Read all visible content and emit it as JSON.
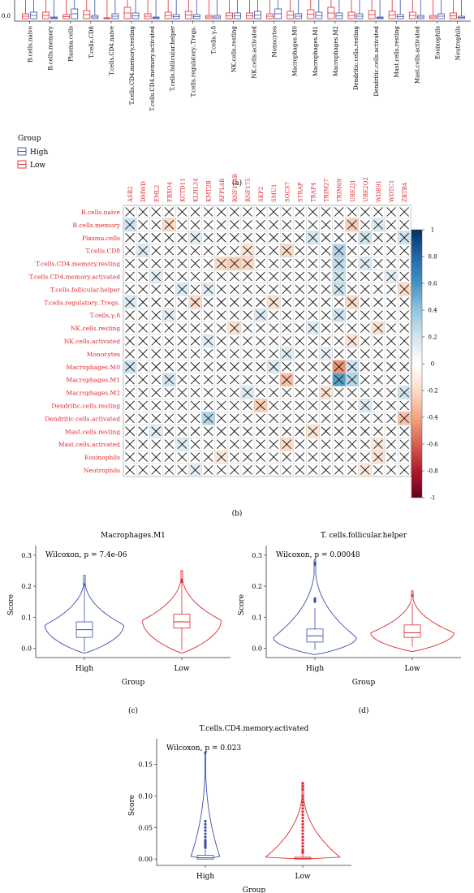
{
  "chart_data": [
    {
      "id": "a",
      "type": "box",
      "panel_label": "(a)",
      "ytick": "0.0",
      "categories": [
        "B.cells.naive",
        "B.cells.memory",
        "Plasma.cells",
        "T.cells.CD8",
        "T.cells.CD4.naive",
        "T.cells.CD4.memory.resting",
        "T.cells.CD4.memory.activated",
        "T.cells.follicular.helper",
        "T.cells.regulatory..Tregs.",
        "T.cells.γ.δ",
        "NK.cells.resting",
        "NK.cells.activated",
        "Monocytes",
        "Macrophages.M0",
        "Macrophages.M1",
        "Macrophages.M2",
        "Dendritic.cells.resting",
        "Dendritic.cells.activated",
        "Mast.cells.resting",
        "Mast.cells.activated",
        "Eosinophils",
        "Neutrophils"
      ],
      "legend_title": "Group",
      "groups": [
        {
          "name": "High",
          "color": "#3b4fa8"
        },
        {
          "name": "Low",
          "color": "#e0282e"
        }
      ]
    },
    {
      "id": "b",
      "type": "heatmap",
      "panel_label": "(b)",
      "columns": [
        "ASB2",
        "DMWD",
        "EML2",
        "FBXO4",
        "KCTD11",
        "KLHL34",
        "KMT2B",
        "RFPL4B",
        "RNF144B",
        "RNF175",
        "SKP2",
        "SMU1",
        "SOCS7",
        "STRAP",
        "TRAF4",
        "TRIM27",
        "TRIM69",
        "UBE2J1",
        "UBE2Q2",
        "WDR91",
        "WDTC1",
        "ZBTB4"
      ],
      "rows": [
        "B.cells.naive",
        "B.cells.memory",
        "Plasma.cells",
        "T.cells.CD8",
        "T.cells.CD4.memory.resting",
        "T.cells.CD4.memory.activated",
        "T.cells.follicular.helper",
        "T.cells.regulatory..Tregs.",
        "T.cells.γ.δ",
        "NK.cells.resting",
        "NK.cells.activated",
        "Monocytes",
        "Macrophages.M0",
        "Macrophages.M1",
        "Macrophages.M2",
        "Dendritic.cells.resting",
        "Dendritic.cells.activated",
        "Mast.cells.resting",
        "Mast.cells.activated",
        "Eosinophils",
        "Neutrophils"
      ],
      "colorbar_ticks": [
        "1",
        "0.8",
        "0.6",
        "0.4",
        "0.2",
        "0",
        "-0.2",
        "-0.4",
        "-0.6",
        "-0.8",
        "-1"
      ],
      "colorbar_range": [
        -1,
        1
      ],
      "highlight_cells": [
        {
          "row": 1,
          "col": 0,
          "v": 0.2
        },
        {
          "row": 1,
          "col": 3,
          "v": -0.2
        },
        {
          "row": 1,
          "col": 17,
          "v": -0.25
        },
        {
          "row": 1,
          "col": 19,
          "v": 0.15
        },
        {
          "row": 2,
          "col": 5,
          "v": 0.12
        },
        {
          "row": 2,
          "col": 14,
          "v": 0.18
        },
        {
          "row": 2,
          "col": 18,
          "v": 0.2
        },
        {
          "row": 2,
          "col": 21,
          "v": 0.2
        },
        {
          "row": 3,
          "col": 1,
          "v": 0.15
        },
        {
          "row": 3,
          "col": 9,
          "v": -0.15
        },
        {
          "row": 3,
          "col": 12,
          "v": -0.2
        },
        {
          "row": 3,
          "col": 16,
          "v": 0.3
        },
        {
          "row": 4,
          "col": 7,
          "v": -0.2
        },
        {
          "row": 4,
          "col": 8,
          "v": -0.25
        },
        {
          "row": 4,
          "col": 9,
          "v": -0.2
        },
        {
          "row": 4,
          "col": 16,
          "v": 0.25
        },
        {
          "row": 4,
          "col": 18,
          "v": 0.15
        },
        {
          "row": 5,
          "col": 2,
          "v": 0.12
        },
        {
          "row": 5,
          "col": 16,
          "v": 0.2
        },
        {
          "row": 5,
          "col": 20,
          "v": 0.12
        },
        {
          "row": 6,
          "col": 4,
          "v": 0.15
        },
        {
          "row": 6,
          "col": 6,
          "v": 0.12
        },
        {
          "row": 6,
          "col": 16,
          "v": 0.22
        },
        {
          "row": 6,
          "col": 21,
          "v": -0.2
        },
        {
          "row": 7,
          "col": 0,
          "v": 0.15
        },
        {
          "row": 7,
          "col": 5,
          "v": -0.2
        },
        {
          "row": 7,
          "col": 11,
          "v": -0.15
        },
        {
          "row": 7,
          "col": 17,
          "v": -0.2
        },
        {
          "row": 8,
          "col": 3,
          "v": 0.12
        },
        {
          "row": 8,
          "col": 10,
          "v": 0.15
        },
        {
          "row": 8,
          "col": 16,
          "v": 0.2
        },
        {
          "row": 9,
          "col": 8,
          "v": -0.15
        },
        {
          "row": 9,
          "col": 14,
          "v": 0.12
        },
        {
          "row": 9,
          "col": 19,
          "v": -0.15
        },
        {
          "row": 10,
          "col": 6,
          "v": 0.12
        },
        {
          "row": 10,
          "col": 17,
          "v": -0.15
        },
        {
          "row": 11,
          "col": 12,
          "v": 0.15
        },
        {
          "row": 11,
          "col": 15,
          "v": 0.1
        },
        {
          "row": 12,
          "col": 0,
          "v": 0.2
        },
        {
          "row": 12,
          "col": 11,
          "v": 0.15
        },
        {
          "row": 12,
          "col": 16,
          "v": -0.45
        },
        {
          "row": 12,
          "col": 17,
          "v": 0.2
        },
        {
          "row": 13,
          "col": 3,
          "v": 0.2
        },
        {
          "row": 13,
          "col": 12,
          "v": -0.3
        },
        {
          "row": 13,
          "col": 16,
          "v": 0.55
        },
        {
          "row": 13,
          "col": 17,
          "v": 0.3
        },
        {
          "row": 14,
          "col": 9,
          "v": 0.15
        },
        {
          "row": 14,
          "col": 15,
          "v": -0.15
        },
        {
          "row": 14,
          "col": 21,
          "v": 0.2
        },
        {
          "row": 15,
          "col": 10,
          "v": -0.25
        },
        {
          "row": 15,
          "col": 18,
          "v": 0.15
        },
        {
          "row": 16,
          "col": 6,
          "v": 0.3
        },
        {
          "row": 16,
          "col": 21,
          "v": -0.3
        },
        {
          "row": 17,
          "col": 2,
          "v": 0.12
        },
        {
          "row": 17,
          "col": 14,
          "v": -0.15
        },
        {
          "row": 18,
          "col": 4,
          "v": 0.15
        },
        {
          "row": 18,
          "col": 12,
          "v": -0.2
        },
        {
          "row": 18,
          "col": 19,
          "v": -0.12
        },
        {
          "row": 19,
          "col": 7,
          "v": -0.12
        },
        {
          "row": 19,
          "col": 19,
          "v": -0.15
        },
        {
          "row": 20,
          "col": 5,
          "v": 0.12
        },
        {
          "row": 20,
          "col": 18,
          "v": -0.12
        }
      ]
    },
    {
      "id": "c",
      "type": "violin",
      "panel_label": "(c)",
      "title": "Macrophages.M1",
      "annotation": "Wilcoxon, p = 7.4e-06",
      "xlabel": "Group",
      "ylabel": "Score",
      "ylim": [
        -0.03,
        0.31
      ],
      "yticks": [
        0.0,
        0.1,
        0.2,
        0.3
      ],
      "ytick_labels": [
        "0.0",
        "0.1",
        "0.2",
        "0.3"
      ],
      "categories": [
        "High",
        "Low"
      ],
      "series": [
        {
          "name": "High",
          "color": "#3b4fa8",
          "min": -0.01,
          "q1": 0.035,
          "median": 0.06,
          "q3": 0.085,
          "max": 0.135,
          "whisker_top": 0.21,
          "violin_top": 0.235,
          "violin_bottom": -0.015,
          "peak": 0.075,
          "width": 0.9,
          "outliers": [
            0.205
          ]
        },
        {
          "name": "Low",
          "color": "#e0282e",
          "min": -0.005,
          "q1": 0.065,
          "median": 0.085,
          "q3": 0.11,
          "max": 0.17,
          "whisker_top": 0.215,
          "violin_top": 0.25,
          "violin_bottom": -0.015,
          "peak": 0.09,
          "width": 0.9,
          "outliers": [
            0.22,
            0.215
          ]
        }
      ]
    },
    {
      "id": "d",
      "type": "violin",
      "panel_label": "(d)",
      "title": "T. cells.follicular.helper",
      "annotation": "Wilcoxon, p = 0.00048",
      "xlabel": "Group",
      "ylabel": "Score",
      "ylim": [
        -0.03,
        0.31
      ],
      "yticks": [
        0.0,
        0.1,
        0.2,
        0.3
      ],
      "ytick_labels": [
        "0.0",
        "0.1",
        "0.2",
        "0.3"
      ],
      "categories": [
        "High",
        "Low"
      ],
      "series": [
        {
          "name": "High",
          "color": "#3b4fa8",
          "min": -0.005,
          "q1": 0.02,
          "median": 0.04,
          "q3": 0.062,
          "max": 0.13,
          "whisker_top": 0.13,
          "violin_top": 0.285,
          "violin_bottom": -0.02,
          "peak": 0.035,
          "width": 0.95,
          "outliers": [
            0.16,
            0.155,
            0.15,
            0.27,
            0.275
          ]
        },
        {
          "name": "Low",
          "color": "#e0282e",
          "min": 0.005,
          "q1": 0.035,
          "median": 0.05,
          "q3": 0.075,
          "max": 0.145,
          "whisker_top": 0.145,
          "violin_top": 0.185,
          "violin_bottom": -0.01,
          "peak": 0.05,
          "width": 0.95,
          "outliers": [
            0.17
          ]
        }
      ]
    },
    {
      "id": "e",
      "type": "violin",
      "panel_label": "",
      "title": "T.cells.CD4.memory.activated",
      "annotation": "Wilcoxon, p = 0.023",
      "xlabel": "Group",
      "ylabel": "Score",
      "ylim": [
        -0.01,
        0.18
      ],
      "yticks": [
        0.0,
        0.05,
        0.1,
        0.15
      ],
      "ytick_labels": [
        "0.00",
        "0.05",
        "0.10",
        "0.15"
      ],
      "categories": [
        "High",
        "Low"
      ],
      "series": [
        {
          "name": "High",
          "color": "#3b4fa8",
          "min": 0.0,
          "q1": 0.0,
          "median": 0.002,
          "q3": 0.006,
          "max": 0.015,
          "whisker_top": 0.015,
          "violin_top": 0.168,
          "violin_bottom": 0.0,
          "peak": 0.0,
          "width": 0.35,
          "outliers": [
            0.168,
            0.06,
            0.055,
            0.05,
            0.045,
            0.04,
            0.035,
            0.03,
            0.028,
            0.025,
            0.022,
            0.02,
            0.018
          ]
        },
        {
          "name": "Low",
          "color": "#e0282e",
          "min": 0.0,
          "q1": 0.0,
          "median": 0.001,
          "q3": 0.003,
          "max": 0.008,
          "whisker_top": 0.008,
          "violin_top": 0.12,
          "violin_bottom": 0.0,
          "peak": 0.0,
          "width": 0.9,
          "outliers": [
            0.12,
            0.115,
            0.11,
            0.1,
            0.095,
            0.09,
            0.085,
            0.08,
            0.075,
            0.07,
            0.065,
            0.06,
            0.055,
            0.05,
            0.045,
            0.04,
            0.035,
            0.03,
            0.025,
            0.02,
            0.015,
            0.012,
            0.01
          ]
        }
      ]
    }
  ]
}
